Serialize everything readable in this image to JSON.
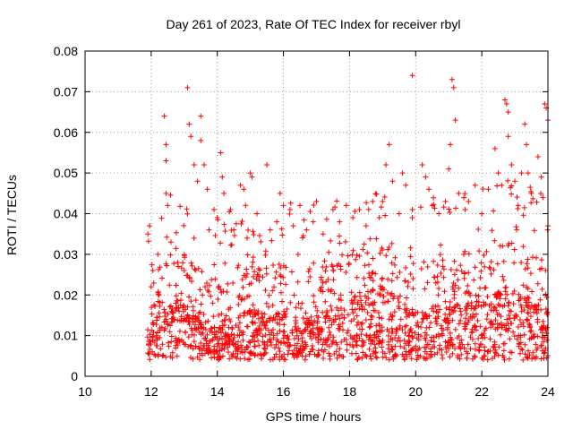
{
  "chart_data": {
    "type": "scatter",
    "title": "Day 261 of 2023, Rate Of TEC Index for receiver rbyl",
    "xlabel": "GPS time / hours",
    "ylabel": "ROTI / TECUs",
    "xlim": [
      10,
      24
    ],
    "ylim": [
      0,
      0.08
    ],
    "x_ticks": [
      "10",
      "12",
      "14",
      "16",
      "18",
      "20",
      "22",
      "24"
    ],
    "y_ticks": [
      "0",
      "0.01",
      "0.02",
      "0.03",
      "0.04",
      "0.05",
      "0.06",
      "0.07",
      "0.08"
    ],
    "grid": true,
    "marker": "+",
    "color": "#ff0000",
    "series": [
      {
        "name": "ROTI",
        "points": [
          [
            11.9,
            0.035
          ],
          [
            11.95,
            0.037
          ],
          [
            12.0,
            0.022
          ],
          [
            12.05,
            0.026
          ],
          [
            12.2,
            0.03
          ],
          [
            12.4,
            0.064
          ],
          [
            12.45,
            0.057
          ],
          [
            12.45,
            0.053
          ],
          [
            12.45,
            0.045
          ],
          [
            12.5,
            0.042
          ],
          [
            12.6,
            0.033
          ],
          [
            12.8,
            0.028
          ],
          [
            13.0,
            0.026
          ],
          [
            13.1,
            0.071
          ],
          [
            13.15,
            0.062
          ],
          [
            13.2,
            0.059
          ],
          [
            13.3,
            0.052
          ],
          [
            13.4,
            0.048
          ],
          [
            13.5,
            0.064
          ],
          [
            13.5,
            0.058
          ],
          [
            13.6,
            0.052
          ],
          [
            13.7,
            0.046
          ],
          [
            13.75,
            0.036
          ],
          [
            13.9,
            0.041
          ],
          [
            14.0,
            0.039
          ],
          [
            14.1,
            0.055
          ],
          [
            14.15,
            0.049
          ],
          [
            14.2,
            0.045
          ],
          [
            14.4,
            0.041
          ],
          [
            14.5,
            0.036
          ],
          [
            14.7,
            0.047
          ],
          [
            14.8,
            0.046
          ],
          [
            14.9,
            0.034
          ],
          [
            15.0,
            0.05
          ],
          [
            15.05,
            0.049
          ],
          [
            15.2,
            0.04
          ],
          [
            15.5,
            0.052
          ],
          [
            15.6,
            0.036
          ],
          [
            15.8,
            0.038
          ],
          [
            15.9,
            0.045
          ],
          [
            16.0,
            0.042
          ],
          [
            16.2,
            0.041
          ],
          [
            16.3,
            0.037
          ],
          [
            16.5,
            0.042
          ],
          [
            16.7,
            0.036
          ],
          [
            16.9,
            0.038
          ],
          [
            17.0,
            0.043
          ],
          [
            17.2,
            0.035
          ],
          [
            17.5,
            0.041
          ],
          [
            17.7,
            0.038
          ],
          [
            17.9,
            0.042
          ],
          [
            18.1,
            0.039
          ],
          [
            18.3,
            0.041
          ],
          [
            18.5,
            0.037
          ],
          [
            18.7,
            0.043
          ],
          [
            18.9,
            0.039
          ],
          [
            19.0,
            0.043
          ],
          [
            19.1,
            0.052
          ],
          [
            19.2,
            0.057
          ],
          [
            19.3,
            0.048
          ],
          [
            19.5,
            0.04
          ],
          [
            19.6,
            0.05
          ],
          [
            19.7,
            0.047
          ],
          [
            19.9,
            0.041
          ],
          [
            19.9,
            0.074
          ],
          [
            20.2,
            0.052
          ],
          [
            20.3,
            0.049
          ],
          [
            20.4,
            0.046
          ],
          [
            20.5,
            0.042
          ],
          [
            20.7,
            0.04
          ],
          [
            20.9,
            0.043
          ],
          [
            21.0,
            0.051
          ],
          [
            21.05,
            0.057
          ],
          [
            21.1,
            0.073
          ],
          [
            21.15,
            0.071
          ],
          [
            21.2,
            0.063
          ],
          [
            21.3,
            0.045
          ],
          [
            21.5,
            0.041
          ],
          [
            21.6,
            0.043
          ],
          [
            21.8,
            0.047
          ],
          [
            22.0,
            0.04
          ],
          [
            22.2,
            0.046
          ],
          [
            22.4,
            0.056
          ],
          [
            22.5,
            0.05
          ],
          [
            22.6,
            0.047
          ],
          [
            22.7,
            0.068
          ],
          [
            22.75,
            0.067
          ],
          [
            22.8,
            0.065
          ],
          [
            22.8,
            0.059
          ],
          [
            22.9,
            0.052
          ],
          [
            23.0,
            0.048
          ],
          [
            23.1,
            0.042
          ],
          [
            23.2,
            0.05
          ],
          [
            23.3,
            0.062
          ],
          [
            23.35,
            0.057
          ],
          [
            23.4,
            0.05
          ],
          [
            23.5,
            0.045
          ],
          [
            23.7,
            0.054
          ],
          [
            23.8,
            0.049
          ],
          [
            23.85,
            0.044
          ],
          [
            23.9,
            0.067
          ],
          [
            23.95,
            0.066
          ],
          [
            24.0,
            0.063
          ],
          [
            24.0,
            0.037
          ]
        ]
      }
    ]
  }
}
